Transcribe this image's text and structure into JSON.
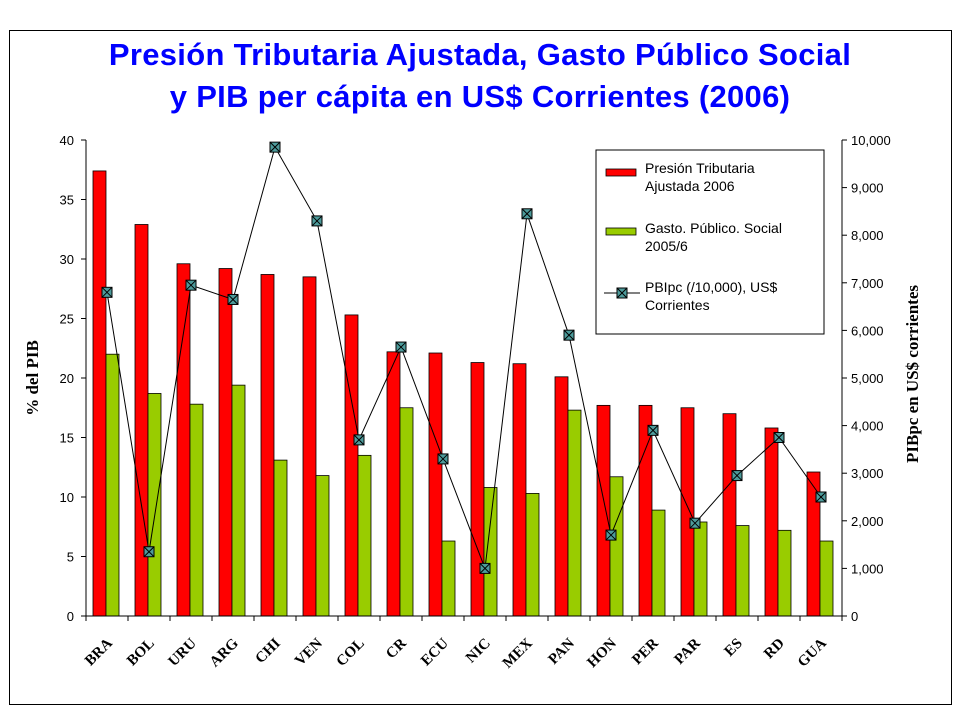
{
  "title_line1": "Presión Tributaria Ajustada, Gasto Público Social",
  "title_line2": "y PIB per cápita en US$ Corrientes (2006)",
  "colors": {
    "tax_bar": "#ff0000",
    "spend_bar": "#99cc00",
    "line": "#000000",
    "marker_fill": "#4d9b9b",
    "title": "#0000ff"
  },
  "chart_data": {
    "type": "bar",
    "categories": [
      "BRA",
      "BOL",
      "URU",
      "ARG",
      "CHI",
      "VEN",
      "COL",
      "CR",
      "ECU",
      "NIC",
      "MEX",
      "PAN",
      "HON",
      "PER",
      "PAR",
      "ES",
      "RD",
      "GUA"
    ],
    "series": [
      {
        "name": "Presión Tributaria Ajustada 2006",
        "type": "bar",
        "axis": "left",
        "values": [
          37.4,
          32.9,
          29.6,
          29.2,
          28.7,
          28.5,
          25.3,
          22.2,
          22.1,
          21.3,
          21.2,
          20.1,
          17.7,
          17.7,
          17.5,
          17.0,
          15.8,
          12.1
        ]
      },
      {
        "name": "Gasto. Público. Social 2005/6",
        "type": "bar",
        "axis": "left",
        "values": [
          22.0,
          18.7,
          17.8,
          19.4,
          13.1,
          11.8,
          13.5,
          17.5,
          6.3,
          10.8,
          10.3,
          17.3,
          11.7,
          8.9,
          7.9,
          7.6,
          7.2,
          6.3
        ]
      },
      {
        "name": "PBIpc (/10,000), US$ Corrientes",
        "type": "line",
        "axis": "right",
        "values": [
          6800,
          1350,
          6950,
          6650,
          9850,
          8300,
          3700,
          5650,
          3300,
          1000,
          8450,
          5900,
          1700,
          3900,
          1950,
          2950,
          3750,
          2500
        ]
      }
    ],
    "ylabel": "% del PIB",
    "y2label": "PIBpc en US$ corrientes",
    "ylim": [
      0,
      40
    ],
    "y2lim": [
      0,
      10000
    ],
    "yticks": [
      "0",
      "5",
      "10",
      "15",
      "20",
      "25",
      "30",
      "35",
      "40"
    ],
    "y2ticks": [
      "0",
      "1,000",
      "2,000",
      "3,000",
      "4,000",
      "5,000",
      "6,000",
      "7,000",
      "8,000",
      "9,000",
      "10,000"
    ],
    "legend": "top-right",
    "grid": false
  }
}
